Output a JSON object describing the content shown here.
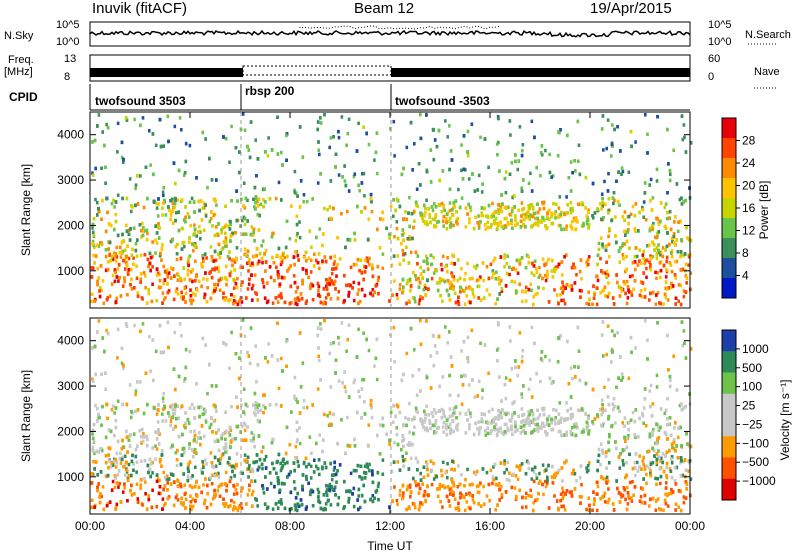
{
  "header": {
    "station": "Inuvik (fitACF)",
    "beam": "Beam 12",
    "date": "19/Apr/2015"
  },
  "status_panels": {
    "nsky_label": "N.Sky",
    "nsky_ticks": [
      "10^5",
      "10^0"
    ],
    "nsearch_label": "N.Search",
    "freq_label_line1": "Freq.",
    "freq_label_line2": "[MHz]",
    "freq_ticks": [
      "13",
      "8"
    ],
    "nave_label": "Nave",
    "nave_ticks": [
      "60",
      "0"
    ],
    "cpid_label": "CPID",
    "cpid_segments": [
      {
        "label": "twofsound 3503",
        "start_hour": 0
      },
      {
        "label": "rbsp 200",
        "start_hour": 6
      },
      {
        "label": "twofsound -3503",
        "start_hour": 12
      }
    ]
  },
  "chart_data": [
    {
      "type": "heatmap",
      "name": "power",
      "xlabel": "",
      "ylabel": "Slant Range [km]",
      "xlim": [
        0,
        24
      ],
      "ylim": [
        180,
        4500
      ],
      "yticks": [
        1000,
        2000,
        3000,
        4000
      ],
      "colorbar": {
        "label": "Power [dB]",
        "ticks": [
          "28",
          "24",
          "20",
          "16",
          "12",
          "8",
          "4"
        ],
        "colors": [
          "#e8000b",
          "#ff4400",
          "#ff8a00",
          "#ffc400",
          "#c8d400",
          "#6bc44a",
          "#3a8f5a",
          "#1d4fa0",
          "#0018c8"
        ]
      },
      "description_regions": [
        {
          "hours": [
            0,
            6
          ],
          "range_km": [
            300,
            1200
          ],
          "level": "high"
        },
        {
          "hours": [
            0,
            12
          ],
          "range_km": [
            1200,
            2400
          ],
          "level": "mixed"
        },
        {
          "hours": [
            12,
            20
          ],
          "range_km": [
            1900,
            2500
          ],
          "level": "medium"
        },
        {
          "hours": [
            18,
            24
          ],
          "range_km": [
            300,
            1300
          ],
          "level": "high"
        }
      ]
    },
    {
      "type": "heatmap",
      "name": "velocity",
      "xlabel": "Time UT",
      "ylabel": "Slant Range [km]",
      "xlim": [
        0,
        24
      ],
      "ylim": [
        180,
        4500
      ],
      "xticks": [
        "00:00",
        "04:00",
        "08:00",
        "12:00",
        "16:00",
        "20:00",
        "00:00"
      ],
      "yticks": [
        1000,
        2000,
        3000,
        4000
      ],
      "colorbar": {
        "label": "Velocity [m s⁻¹]",
        "ticks": [
          "1000",
          "500",
          "100",
          "25",
          "−25",
          "−100",
          "−500",
          "−1000"
        ],
        "colors": [
          "#1d3fa8",
          "#2e8b57",
          "#6cc24a",
          "#c8c8c8",
          "#c8c8c8",
          "#ff9a00",
          "#ff5000",
          "#e00000"
        ]
      }
    }
  ]
}
